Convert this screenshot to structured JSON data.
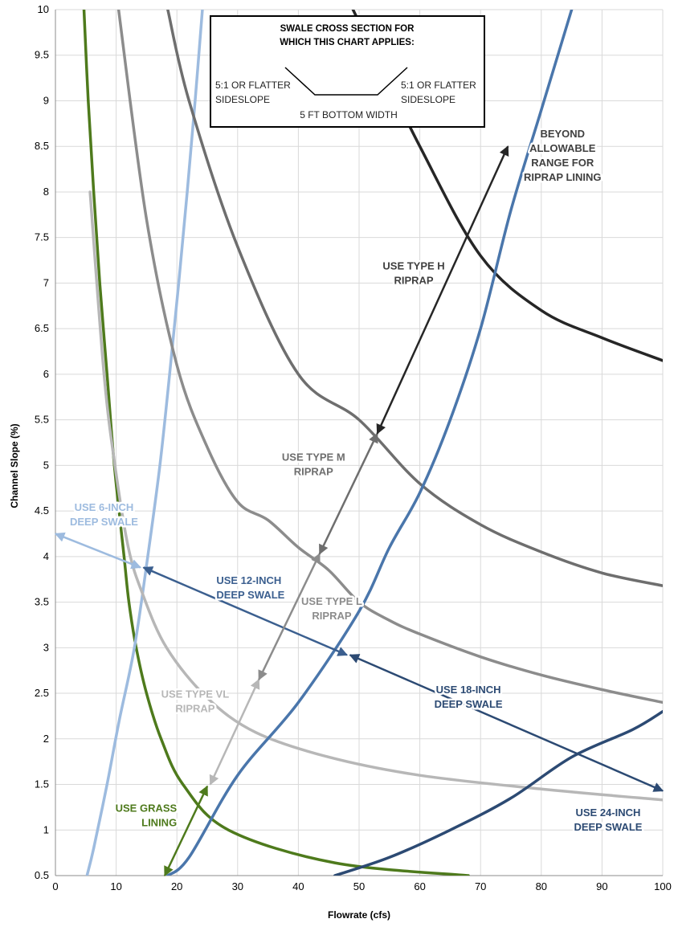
{
  "chart_data": {
    "type": "line",
    "title": "",
    "xlabel": "Flowrate (cfs)",
    "ylabel": "Channel Slope (%)",
    "xlim": [
      0,
      100
    ],
    "ylim": [
      0.5,
      10
    ],
    "xticks": [
      "0",
      "10",
      "20",
      "30",
      "40",
      "50",
      "60",
      "70",
      "80",
      "90",
      "100"
    ],
    "yticks": [
      "0.5",
      "1",
      "1.5",
      "2",
      "2.5",
      "3",
      "3.5",
      "4",
      "4.5",
      "5",
      "5.5",
      "6",
      "6.5",
      "7",
      "7.5",
      "8",
      "8.5",
      "9",
      "9.5",
      "10"
    ],
    "grid": true,
    "legend": "none",
    "series": [
      {
        "color": "#4e7a1c",
        "points": [
          [
            4.7,
            10
          ],
          [
            5.4,
            9
          ],
          [
            6.3,
            8
          ],
          [
            7.3,
            7
          ],
          [
            8.5,
            6
          ],
          [
            9.7,
            5
          ],
          [
            11.3,
            4
          ],
          [
            12.1,
            3.5
          ],
          [
            13.3,
            3
          ],
          [
            15,
            2.5
          ],
          [
            17.4,
            2
          ],
          [
            21,
            1.5
          ],
          [
            28.5,
            1
          ],
          [
            46,
            0.64
          ],
          [
            68,
            0.5
          ]
        ]
      },
      {
        "color": "#9dbbdf",
        "points": [
          [
            5.2,
            0.5
          ],
          [
            6.3,
            0.8
          ],
          [
            8.5,
            1.5
          ],
          [
            10.5,
            2.2
          ],
          [
            13,
            3
          ],
          [
            15.2,
            4
          ],
          [
            17.2,
            5
          ],
          [
            18.8,
            6
          ],
          [
            20.3,
            7
          ],
          [
            21.7,
            8
          ],
          [
            23,
            9
          ],
          [
            24.2,
            10
          ]
        ]
      },
      {
        "color": "#b7b7b7",
        "points": [
          [
            5.7,
            8
          ],
          [
            8,
            6
          ],
          [
            9.8,
            5
          ],
          [
            12,
            4.1
          ],
          [
            14.3,
            3.6
          ],
          [
            18.3,
            3
          ],
          [
            25,
            2.45
          ],
          [
            33,
            2.07
          ],
          [
            45,
            1.8
          ],
          [
            60,
            1.6
          ],
          [
            80,
            1.45
          ],
          [
            100,
            1.33
          ]
        ]
      },
      {
        "color": "#8c8c8c",
        "points": [
          [
            10.4,
            10
          ],
          [
            15,
            7.7
          ],
          [
            20,
            6.1
          ],
          [
            25,
            5.2
          ],
          [
            30,
            4.6
          ],
          [
            35,
            4.4
          ],
          [
            40,
            4.1
          ],
          [
            45,
            3.85
          ],
          [
            50,
            3.5
          ],
          [
            55,
            3.3
          ],
          [
            60,
            3.15
          ],
          [
            70,
            2.9
          ],
          [
            80,
            2.7
          ],
          [
            90,
            2.54
          ],
          [
            100,
            2.4
          ]
        ]
      },
      {
        "color": "#6e6e6e",
        "points": [
          [
            18.5,
            10
          ],
          [
            22,
            9
          ],
          [
            30,
            7.4
          ],
          [
            40,
            6
          ],
          [
            50,
            5.5
          ],
          [
            60,
            4.8
          ],
          [
            70,
            4.35
          ],
          [
            80,
            4.05
          ],
          [
            90,
            3.82
          ],
          [
            100,
            3.68
          ]
        ]
      },
      {
        "color": "#262626",
        "points": [
          [
            49,
            10
          ],
          [
            60,
            8.5
          ],
          [
            70,
            7.3
          ],
          [
            80,
            6.7
          ],
          [
            90,
            6.4
          ],
          [
            100,
            6.15
          ]
        ]
      },
      {
        "color": "#4a76ab",
        "points": [
          [
            18.5,
            0.5
          ],
          [
            22,
            0.7
          ],
          [
            30,
            1.6
          ],
          [
            40,
            2.4
          ],
          [
            50,
            3.4
          ],
          [
            55,
            4.1
          ],
          [
            60,
            4.7
          ],
          [
            65,
            5.5
          ],
          [
            70,
            6.5
          ],
          [
            75,
            7.8
          ],
          [
            80,
            8.9
          ],
          [
            85,
            10
          ]
        ]
      },
      {
        "color": "#2c4a73",
        "points": [
          [
            46,
            0.5
          ],
          [
            55,
            0.7
          ],
          [
            65,
            1
          ],
          [
            75,
            1.35
          ],
          [
            85,
            1.8
          ],
          [
            95,
            2.1
          ],
          [
            100,
            2.3
          ]
        ]
      }
    ],
    "arrows": [
      {
        "color": "#9dbbdf",
        "from": [
          0,
          4.25
        ],
        "to": [
          14,
          3.88
        ]
      },
      {
        "color": "#3b5f8f",
        "from": [
          14.5,
          3.88
        ],
        "to": [
          48,
          2.92
        ]
      },
      {
        "color": "#2c4a73",
        "from": [
          48.5,
          2.92
        ],
        "to": [
          100,
          1.43
        ]
      },
      {
        "color": "#4e7a1c",
        "from": [
          25,
          1.48
        ],
        "to": [
          18,
          0.5
        ]
      },
      {
        "color": "#b7b7b7",
        "from": [
          25.5,
          1.5
        ],
        "to": [
          33.5,
          2.65
        ]
      },
      {
        "color": "#8c8c8c",
        "from": [
          33.5,
          2.65
        ],
        "to": [
          43.5,
          4.03
        ]
      },
      {
        "color": "#6e6e6e",
        "from": [
          43.5,
          4.03
        ],
        "to": [
          53,
          5.35
        ]
      },
      {
        "color": "#262626",
        "from": [
          53,
          5.35
        ],
        "to": [
          74.5,
          8.5
        ]
      }
    ],
    "annotations": [
      {
        "lines": [
          "USE 6-INCH",
          "DEEP SWALE"
        ],
        "color": "#9dbbdf",
        "x": 8,
        "y": 4.5,
        "anchor": "middle"
      },
      {
        "lines": [
          "USE 12-INCH",
          "DEEP SWALE"
        ],
        "color": "#3b5f8f",
        "x": 26.5,
        "y": 3.7,
        "anchor": "start"
      },
      {
        "lines": [
          "USE 18-INCH",
          "DEEP SWALE"
        ],
        "color": "#2c4a73",
        "x": 68,
        "y": 2.5,
        "anchor": "middle"
      },
      {
        "lines": [
          "USE 24-INCH",
          "DEEP SWALE"
        ],
        "color": "#2c4a73",
        "x": 91,
        "y": 1.15,
        "anchor": "middle"
      },
      {
        "lines": [
          "USE GRASS",
          "LINING"
        ],
        "color": "#4e7a1c",
        "x": 20,
        "y": 1.2,
        "anchor": "end"
      },
      {
        "lines": [
          "USE TYPE VL",
          "RIPRAP"
        ],
        "color": "#b7b7b7",
        "x": 23,
        "y": 2.45,
        "anchor": "middle"
      },
      {
        "lines": [
          "USE TYPE L",
          "RIPRAP"
        ],
        "color": "#8c8c8c",
        "x": 45.5,
        "y": 3.47,
        "anchor": "middle"
      },
      {
        "lines": [
          "USE TYPE M",
          "RIPRAP"
        ],
        "color": "#6e6e6e",
        "x": 42.5,
        "y": 5.05,
        "anchor": "middle"
      },
      {
        "lines": [
          "USE TYPE H",
          "RIPRAP"
        ],
        "color": "#404040",
        "x": 59,
        "y": 7.15,
        "anchor": "middle"
      },
      {
        "lines": [
          "BEYOND",
          "ALLOWABLE",
          "RANGE FOR",
          "RIPRAP LINING"
        ],
        "color": "#404040",
        "x": 83.5,
        "y": 8.6,
        "anchor": "middle"
      }
    ],
    "inset": {
      "title_lines": [
        "SWALE CROSS SECTION FOR",
        "WHICH THIS CHART APPLIES:"
      ],
      "left_label": [
        "5:1 OR FLATTER",
        "SIDESLOPE"
      ],
      "right_label": [
        "5:1 OR FLATTER",
        "SIDESLOPE"
      ],
      "bottom_label": "5 FT BOTTOM WIDTH"
    }
  }
}
